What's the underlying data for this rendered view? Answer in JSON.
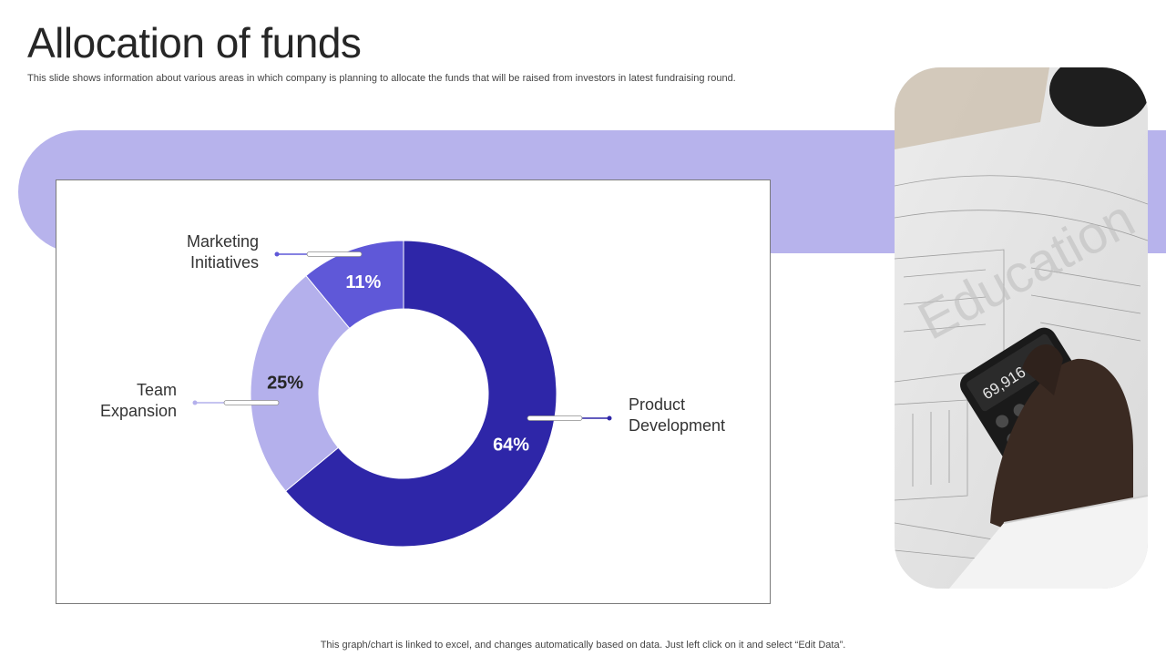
{
  "slide": {
    "title": "Allocation of funds",
    "subtitle": "This slide shows information about various areas in which company is planning to allocate the funds that will be raised from investors in latest fundraising round.",
    "footnote": "This graph/chart is linked to excel,  and changes automatically based on data. Just left click on it and select “Edit Data”."
  },
  "colors": {
    "band": "#b7b3ec",
    "product": "#2e26a8",
    "team": "#b4b0ec",
    "marketing": "#5f58d8"
  },
  "photo": {
    "calculator_display": "69,916",
    "watermark": "Education"
  },
  "chart_data": {
    "type": "pie",
    "donut": true,
    "categories": [
      "Product Development",
      "Team Expansion",
      "Marketing Initiatives"
    ],
    "values": [
      64,
      25,
      11
    ],
    "value_labels": [
      "64%",
      "25%",
      "11%"
    ],
    "label_lines": [
      [
        "Product",
        "Development"
      ],
      [
        "Team",
        "Expansion"
      ],
      [
        "Marketing",
        "Initiatives"
      ]
    ],
    "colors": [
      "#2e26a8",
      "#b4b0ec",
      "#5f58d8"
    ],
    "start_angle": "top",
    "direction": "clockwise"
  }
}
